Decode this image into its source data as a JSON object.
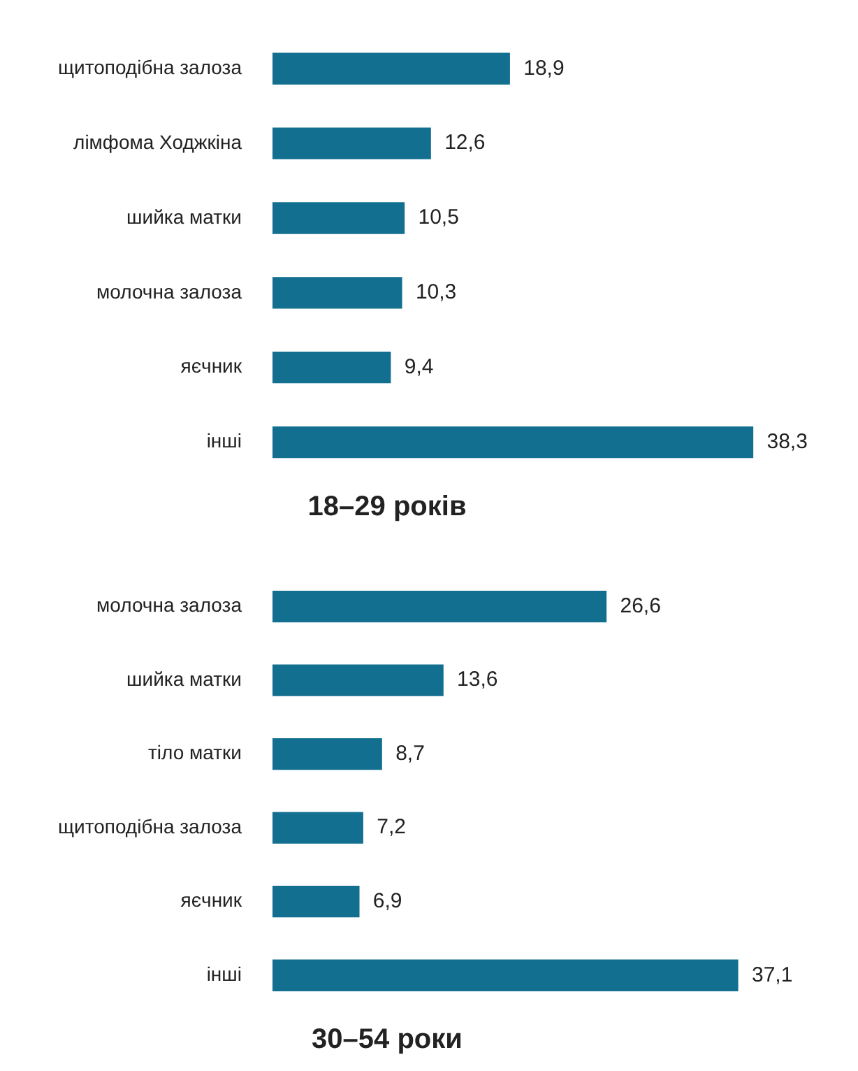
{
  "chart_data": [
    {
      "type": "bar",
      "orientation": "horizontal",
      "title": "18–29 років",
      "categories": [
        "щитоподібна залоза",
        "лімфома Ходжкіна",
        "шийка матки",
        "молочна залоза",
        "яєчник",
        "інші"
      ],
      "values": [
        18.9,
        12.6,
        10.5,
        10.3,
        9.4,
        38.3
      ],
      "value_labels": [
        "18,9",
        "12,6",
        "10,5",
        "10,3",
        "9,4",
        "38,3"
      ],
      "color": "#126f90",
      "grid": false,
      "legend": false,
      "tick_labels": "y"
    },
    {
      "type": "bar",
      "orientation": "horizontal",
      "title": "30–54 роки",
      "categories": [
        "молочна залоза",
        "шийка матки",
        "тіло матки",
        "щитоподібна залоза",
        "яєчник",
        "інші"
      ],
      "values": [
        26.6,
        13.6,
        8.7,
        7.2,
        6.9,
        37.1
      ],
      "value_labels": [
        "26,6",
        "13,6",
        "8,7",
        "7,2",
        "6,9",
        "37,1"
      ],
      "color": "#126f90",
      "grid": false,
      "legend": false,
      "tick_labels": "y"
    }
  ]
}
